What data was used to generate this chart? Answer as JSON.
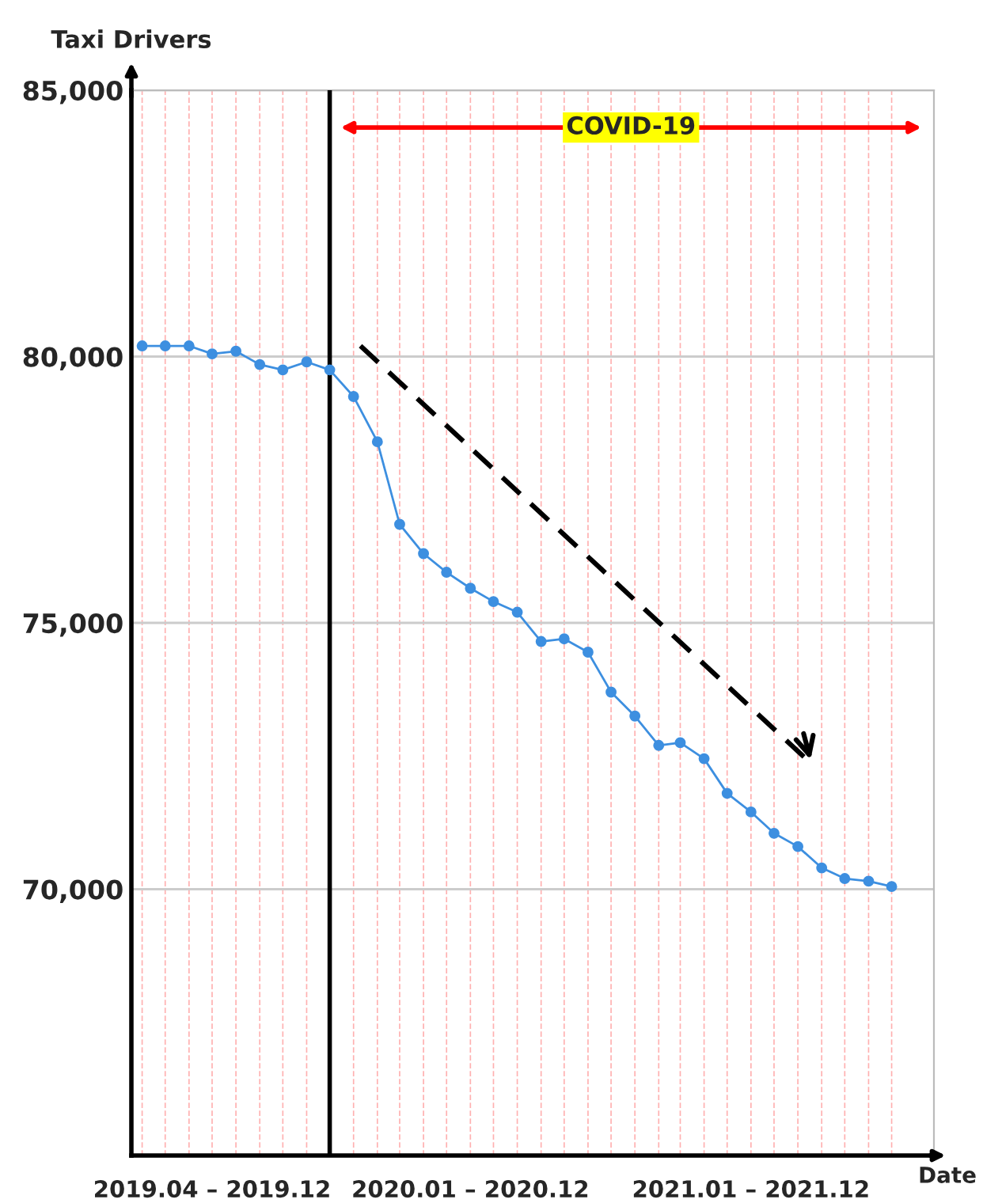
{
  "chart_data": {
    "type": "line",
    "xlabel": "Date",
    "ylabel": "Taxi Drivers",
    "x": [
      "2019-04",
      "2019-05",
      "2019-06",
      "2019-07",
      "2019-08",
      "2019-09",
      "2019-10",
      "2019-11",
      "2019-12",
      "2020-01",
      "2020-02",
      "2020-03",
      "2020-04",
      "2020-05",
      "2020-06",
      "2020-07",
      "2020-08",
      "2020-09",
      "2020-10",
      "2020-11",
      "2020-12",
      "2021-01",
      "2021-02",
      "2021-03",
      "2021-04",
      "2021-05",
      "2021-06",
      "2021-07",
      "2021-08",
      "2021-09",
      "2021-10",
      "2021-11",
      "2021-12"
    ],
    "series": [
      {
        "color": "#3d8fe0",
        "values": [
          80200,
          80200,
          80200,
          80050,
          80100,
          79850,
          79750,
          79900,
          79750,
          79250,
          78400,
          76850,
          76300,
          75950,
          75650,
          75400,
          75200,
          74650,
          74700,
          74450,
          73700,
          73250,
          72700,
          72750,
          72450,
          71800,
          71450,
          71050,
          70800,
          70400,
          70200,
          70150,
          70050
        ]
      },
      {
        "type": "line",
        "x": [
          "2020-01-10",
          "2021-08-19"
        ],
        "values": [
          80200,
          72350
        ],
        "color": "#000000",
        "line_style": "dashed",
        "marker": "none"
      }
    ],
    "xlim": [
      "2019-03-18",
      "2022-01-25"
    ],
    "xticks": [
      {
        "value": "2019-07",
        "label": "2019.04 – 2019.12"
      },
      {
        "value": "2020-06",
        "label": "2020.01 – 2020.12"
      },
      {
        "value": "2021-06",
        "label": "2021.01 – 2021.12"
      },
      {
        "value": "2019-12",
        "label": null
      },
      {
        "value": "2020-12",
        "label": null
      }
    ],
    "ylim": [
      65000,
      85000
    ],
    "yticks": [
      {
        "value": 70000,
        "label": "70,000"
      },
      {
        "value": 75000,
        "label": "75,000"
      },
      {
        "value": 80000,
        "label": "80,000"
      },
      {
        "value": 85000,
        "label": "85,000"
      }
    ],
    "ref_lines": [
      {
        "axis": "x",
        "value": "2019-12",
        "color": "#000000"
      }
    ],
    "annotations": [
      "COVID-19"
    ],
    "grid": true,
    "marker": "circle",
    "line_style": "solid"
  }
}
